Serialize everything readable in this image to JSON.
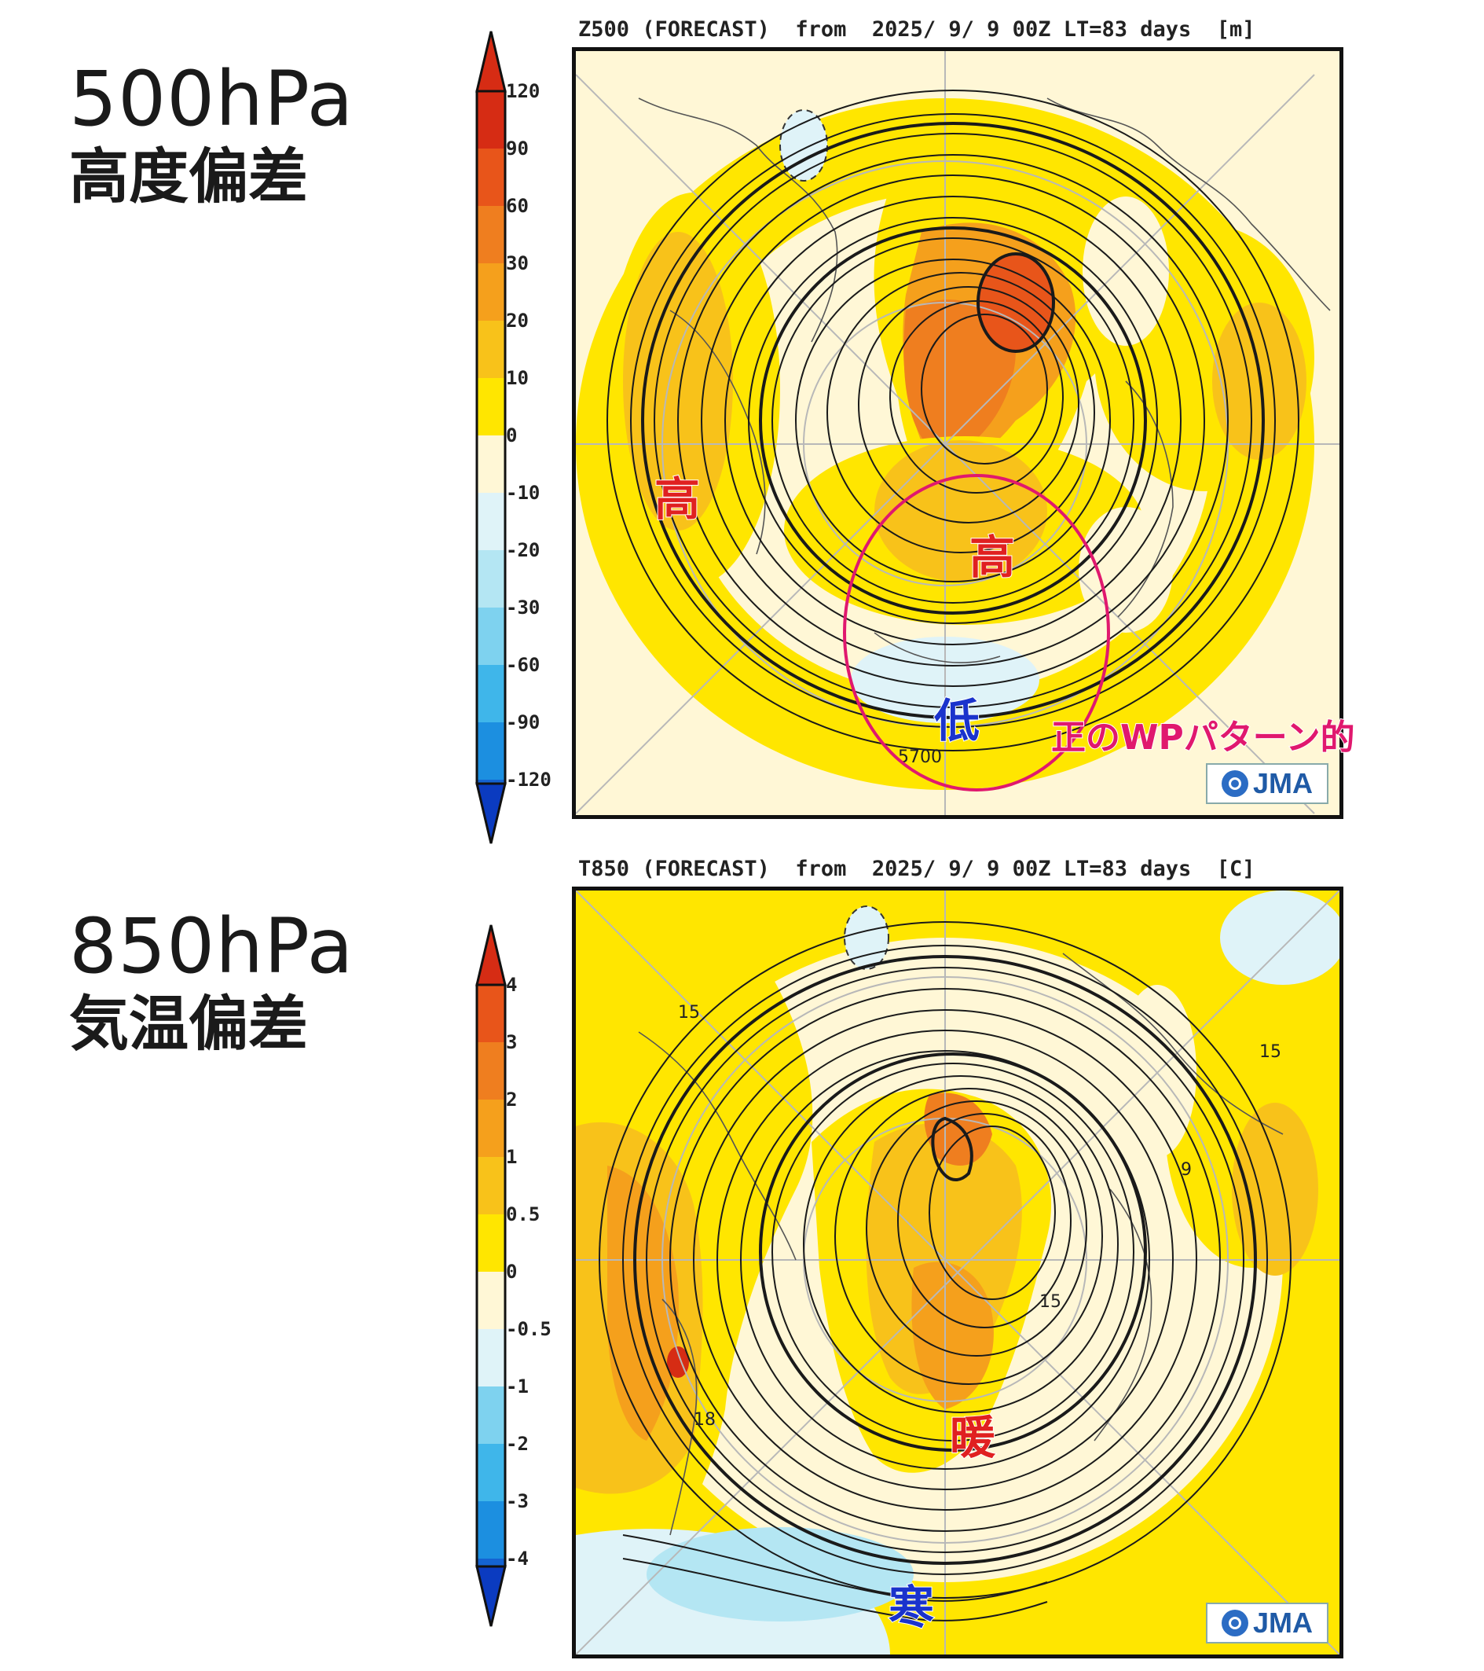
{
  "panels": [
    {
      "side_title_line1": "500hPa",
      "side_title_line2": "高度偏差",
      "header": "Z500 (FORECAST)  from  2025/ 9/ 9 00Z LT=83 days  [m]",
      "colorbar_labels": [
        "120",
        "90",
        "60",
        "30",
        "20",
        "10",
        "0",
        "-10",
        "-20",
        "-30",
        "-60",
        "-90",
        "-120"
      ],
      "contour_labels": [
        "5700"
      ],
      "annotations": {
        "high_1": "高",
        "high_2": "高",
        "low_1": "低"
      },
      "note": "正のWPパターン的",
      "logo_text": "JMA"
    },
    {
      "side_title_line1": "850hPa",
      "side_title_line2": "気温偏差",
      "header": "T850 (FORECAST)  from  2025/ 9/ 9 00Z LT=83 days  [C]",
      "colorbar_labels": [
        "4",
        "3",
        "2",
        "1",
        "0.5",
        "0",
        "-0.5",
        "-1",
        "-2",
        "-3",
        "-4"
      ],
      "contour_labels": [
        "15",
        "15",
        "9",
        "15",
        "18"
      ],
      "annotations": {
        "warm": "暖",
        "cold": "寒"
      },
      "logo_text": "JMA"
    }
  ],
  "colors": {
    "pos_ramp": [
      "#fff7d6",
      "#ffe600",
      "#f8c21a",
      "#f5a01c",
      "#ef7e1f",
      "#e8551a",
      "#d62c14"
    ],
    "neg_ramp": [
      "#dff3f8",
      "#b4e6f3",
      "#7ed2ef",
      "#3fb6ea",
      "#1c8fe0",
      "#1463d2",
      "#0b3bc0"
    ],
    "annotation_red": "#e02020",
    "annotation_blue": "#1a33cc",
    "circle_magenta": "#e0186e"
  }
}
